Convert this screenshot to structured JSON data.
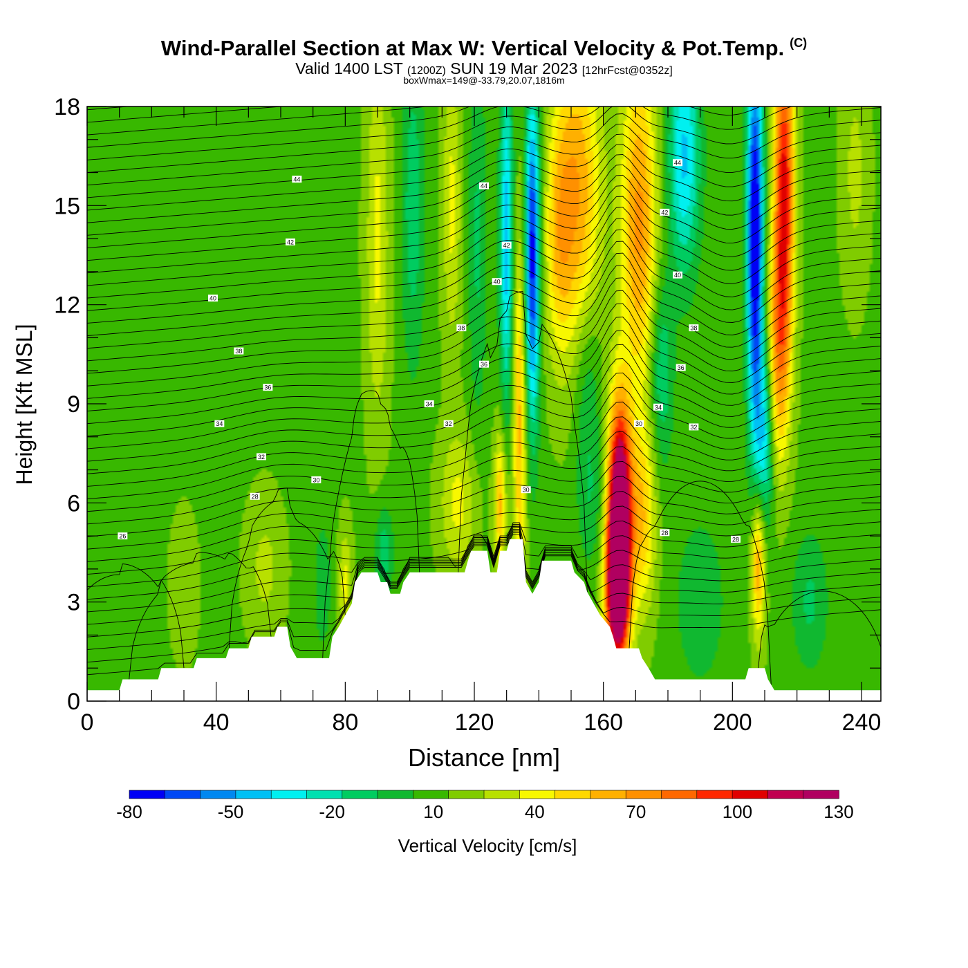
{
  "chart_data": {
    "type": "heatmap",
    "title": "Wind-Parallel Section at Max W: Vertical Velocity & Pot.Temp.",
    "copyright_mark": "(C)",
    "subtitle_main": "Valid 1400 LST",
    "subtitle_utc": "(1200Z)",
    "subtitle_date": "SUN 19 Mar 2023",
    "subtitle_fcst": "[12hrFcst@0352z]",
    "box_info": "boxWmax=149@-33.79,20.07,1816m",
    "xlabel": "Distance [nm]",
    "ylabel": "Height [Kft MSL]",
    "xlim": [
      0,
      246
    ],
    "ylim": [
      0,
      18
    ],
    "x_ticks": [
      "0",
      "40",
      "80",
      "120",
      "160",
      "200",
      "240"
    ],
    "x_tick_values": [
      0,
      40,
      80,
      120,
      160,
      200,
      240
    ],
    "y_ticks": [
      "0",
      "3",
      "6",
      "9",
      "12",
      "15",
      "18"
    ],
    "y_tick_values": [
      0,
      3,
      6,
      9,
      12,
      15,
      18
    ],
    "colorbar": {
      "label": "Vertical Velocity [cm/s]",
      "min": -80,
      "max": 130,
      "step": 10,
      "tick_labels": [
        "-80",
        "-50",
        "-20",
        "10",
        "40",
        "70",
        "100",
        "130"
      ],
      "colors": [
        "#0000f5",
        "#0048f5",
        "#0088f0",
        "#00c0f5",
        "#00f0f0",
        "#00e0b0",
        "#00cc60",
        "#10b830",
        "#38b800",
        "#80cc00",
        "#b8e000",
        "#f8f800",
        "#ffd800",
        "#ffb000",
        "#ff9000",
        "#ff6800",
        "#ff2800",
        "#e00000",
        "#c00050",
        "#b00060"
      ]
    },
    "terrain_kft": [
      [
        0,
        0.33
      ],
      [
        10,
        0.33
      ],
      [
        11,
        0.66
      ],
      [
        22,
        0.66
      ],
      [
        23,
        1.0
      ],
      [
        33,
        1.0
      ],
      [
        34,
        1.3
      ],
      [
        43,
        1.3
      ],
      [
        44,
        1.6
      ],
      [
        50,
        1.6
      ],
      [
        51,
        1.95
      ],
      [
        58,
        1.95
      ],
      [
        59,
        2.25
      ],
      [
        62,
        2.25
      ],
      [
        63,
        1.65
      ],
      [
        65,
        1.3
      ],
      [
        67,
        1.3
      ],
      [
        69,
        1.3
      ],
      [
        75,
        1.3
      ],
      [
        76,
        1.95
      ],
      [
        78,
        2.25
      ],
      [
        80,
        2.6
      ],
      [
        82,
        2.95
      ],
      [
        83,
        3.6
      ],
      [
        85,
        3.9
      ],
      [
        90,
        3.9
      ],
      [
        91,
        3.6
      ],
      [
        93,
        3.6
      ],
      [
        94,
        3.25
      ],
      [
        97,
        3.25
      ],
      [
        98,
        3.6
      ],
      [
        100,
        3.9
      ],
      [
        117,
        3.9
      ],
      [
        118,
        4.25
      ],
      [
        119,
        4.55
      ],
      [
        124,
        4.55
      ],
      [
        125,
        3.9
      ],
      [
        127,
        3.9
      ],
      [
        128,
        4.55
      ],
      [
        130,
        4.55
      ],
      [
        131,
        4.9
      ],
      [
        135,
        4.9
      ],
      [
        136,
        3.6
      ],
      [
        138,
        3.25
      ],
      [
        140,
        3.6
      ],
      [
        141,
        4.25
      ],
      [
        150,
        4.25
      ],
      [
        151,
        3.9
      ],
      [
        154,
        3.6
      ],
      [
        155,
        3.3
      ],
      [
        157,
        2.95
      ],
      [
        159,
        2.6
      ],
      [
        162,
        2.25
      ],
      [
        163,
        1.95
      ],
      [
        164,
        1.6
      ],
      [
        171,
        1.6
      ],
      [
        172,
        1.3
      ],
      [
        174,
        1.0
      ],
      [
        176,
        0.66
      ],
      [
        184,
        0.66
      ],
      [
        195,
        0.66
      ],
      [
        204,
        0.66
      ],
      [
        205,
        1.0
      ],
      [
        210,
        1.0
      ],
      [
        211,
        0.66
      ],
      [
        213,
        0.33
      ],
      [
        246,
        0.33
      ]
    ],
    "w_features": [
      {
        "x": 165,
        "y": 5.5,
        "sx": 2.5,
        "sy": 2.4,
        "w": 145
      },
      {
        "x": 164,
        "y": 3.2,
        "sx": 2.5,
        "sy": 1.5,
        "w": 85
      },
      {
        "x": 172,
        "y": 5.5,
        "sx": 3.0,
        "sy": 2.0,
        "w": 40
      },
      {
        "x": 171,
        "y": 14.5,
        "sx": 4.0,
        "sy": 3.6,
        "w": 55
      },
      {
        "x": 216,
        "y": 15.5,
        "sx": 2.2,
        "sy": 3.6,
        "w": 85
      },
      {
        "x": 214,
        "y": 10.5,
        "sx": 2.5,
        "sy": 2.5,
        "w": 45
      },
      {
        "x": 208,
        "y": 4.2,
        "sx": 1.5,
        "sy": 1.6,
        "w": 55
      },
      {
        "x": 207,
        "y": 14.0,
        "sx": 1.8,
        "sy": 4.2,
        "w": -95
      },
      {
        "x": 210,
        "y": 8.0,
        "sx": 2.0,
        "sy": 2.0,
        "w": -45
      },
      {
        "x": 138,
        "y": 13.5,
        "sx": 1.6,
        "sy": 3.5,
        "w": -85
      },
      {
        "x": 130,
        "y": 14.0,
        "sx": 1.5,
        "sy": 3.5,
        "w": -55
      },
      {
        "x": 178,
        "y": 10.0,
        "sx": 2.5,
        "sy": 2.0,
        "w": -30
      },
      {
        "x": 185,
        "y": 16.5,
        "sx": 3.5,
        "sy": 2.5,
        "w": -50
      },
      {
        "x": 152,
        "y": 15.5,
        "sx": 5.0,
        "sy": 3.5,
        "w": 50
      },
      {
        "x": 146,
        "y": 14.0,
        "sx": 3.0,
        "sy": 2.5,
        "w": 30
      },
      {
        "x": 134,
        "y": 8.5,
        "sx": 1.5,
        "sy": 4.0,
        "w": 45
      },
      {
        "x": 128,
        "y": 6.0,
        "sx": 1.3,
        "sy": 1.5,
        "w": 45
      },
      {
        "x": 155,
        "y": 9.5,
        "sx": 3.0,
        "sy": 2.0,
        "w": -20
      },
      {
        "x": 156,
        "y": 6.0,
        "sx": 3.0,
        "sy": 1.5,
        "w": -15
      },
      {
        "x": 121,
        "y": 14.0,
        "sx": 2.0,
        "sy": 4.0,
        "w": -20
      },
      {
        "x": 113,
        "y": 15.0,
        "sx": 2.0,
        "sy": 3.0,
        "w": 25
      },
      {
        "x": 101,
        "y": 15.0,
        "sx": 2.5,
        "sy": 3.5,
        "w": -25
      },
      {
        "x": 90,
        "y": 14.0,
        "sx": 2.5,
        "sy": 4.0,
        "w": 25
      },
      {
        "x": 115,
        "y": 6.0,
        "sx": 4.0,
        "sy": 1.5,
        "w": 25
      },
      {
        "x": 92,
        "y": 4.5,
        "sx": 2.0,
        "sy": 1.0,
        "w": -25
      },
      {
        "x": 80,
        "y": 3.5,
        "sx": 1.5,
        "sy": 1.2,
        "w": 25
      },
      {
        "x": 73,
        "y": 3.5,
        "sx": 2.0,
        "sy": 1.5,
        "w": -15
      },
      {
        "x": 55,
        "y": 4.0,
        "sx": 4.0,
        "sy": 1.5,
        "w": 15
      },
      {
        "x": 30,
        "y": 3.5,
        "sx": 3.0,
        "sy": 1.5,
        "w": 10
      },
      {
        "x": 190,
        "y": 3.0,
        "sx": 6.0,
        "sy": 2.0,
        "w": -15
      },
      {
        "x": 224,
        "y": 3.0,
        "sx": 4.0,
        "sy": 1.5,
        "w": -20
      },
      {
        "x": 238,
        "y": 16.0,
        "sx": 3.0,
        "sy": 2.5,
        "w": 15
      }
    ],
    "theta_contour_labels": [
      {
        "x": 65,
        "y": 15.8,
        "text": "44"
      },
      {
        "x": 123,
        "y": 15.6,
        "text": "44"
      },
      {
        "x": 183,
        "y": 16.3,
        "text": "44"
      },
      {
        "x": 63,
        "y": 13.9,
        "text": "42"
      },
      {
        "x": 130,
        "y": 13.8,
        "text": "42"
      },
      {
        "x": 179,
        "y": 14.8,
        "text": "42"
      },
      {
        "x": 39,
        "y": 12.2,
        "text": "40"
      },
      {
        "x": 127,
        "y": 12.7,
        "text": "40"
      },
      {
        "x": 183,
        "y": 12.9,
        "text": "40"
      },
      {
        "x": 47,
        "y": 10.6,
        "text": "38"
      },
      {
        "x": 116,
        "y": 11.3,
        "text": "38"
      },
      {
        "x": 188,
        "y": 11.3,
        "text": "38"
      },
      {
        "x": 56,
        "y": 9.5,
        "text": "36"
      },
      {
        "x": 123,
        "y": 10.2,
        "text": "36"
      },
      {
        "x": 184,
        "y": 10.1,
        "text": "36"
      },
      {
        "x": 41,
        "y": 8.4,
        "text": "34"
      },
      {
        "x": 106,
        "y": 9.0,
        "text": "34"
      },
      {
        "x": 177,
        "y": 8.9,
        "text": "34"
      },
      {
        "x": 54,
        "y": 7.4,
        "text": "32"
      },
      {
        "x": 112,
        "y": 8.4,
        "text": "32"
      },
      {
        "x": 188,
        "y": 8.3,
        "text": "32"
      },
      {
        "x": 71,
        "y": 6.7,
        "text": "30"
      },
      {
        "x": 136,
        "y": 6.4,
        "text": "30"
      },
      {
        "x": 171,
        "y": 8.4,
        "text": "30"
      },
      {
        "x": 52,
        "y": 6.2,
        "text": "28"
      },
      {
        "x": 179,
        "y": 5.1,
        "text": "28"
      },
      {
        "x": 201,
        "y": 4.9,
        "text": "28"
      },
      {
        "x": 11,
        "y": 5.0,
        "text": "26"
      }
    ]
  }
}
